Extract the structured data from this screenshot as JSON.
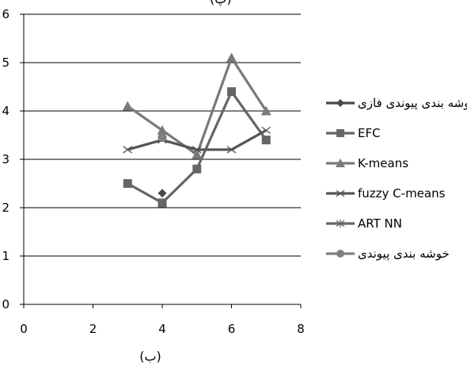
{
  "chart_data": {
    "type": "line",
    "title": "",
    "caption": "(ب)",
    "top_label_fragment": "(پ)",
    "xlabel": "",
    "ylabel": "",
    "xlim": [
      0,
      8
    ],
    "ylim": [
      0,
      6
    ],
    "x_ticks": [
      "0",
      "2",
      "4",
      "6",
      "8"
    ],
    "y_ticks": [
      "0",
      "1",
      "2",
      "3",
      "4",
      "5",
      "6"
    ],
    "grid": "horizontal",
    "legend_position": "right",
    "series": [
      {
        "name": "خوشه بندی پیوندی فازی",
        "marker": "diamond",
        "color": "#4a4a4a",
        "x": [
          4
        ],
        "y": [
          2.3
        ]
      },
      {
        "name": "EFC",
        "marker": "square",
        "color": "#666666",
        "x": [
          3,
          4,
          5,
          6,
          7
        ],
        "y": [
          2.5,
          2.1,
          2.8,
          4.4,
          3.4
        ]
      },
      {
        "name": "K-means",
        "marker": "triangle",
        "color": "#7a7a7a",
        "x": [
          3,
          4,
          5,
          6,
          7
        ],
        "y": [
          4.1,
          3.6,
          3.1,
          5.1,
          4.0
        ]
      },
      {
        "name": "fuzzy C-means",
        "marker": "x",
        "color": "#555555",
        "x": [
          3,
          4,
          5,
          6,
          7
        ],
        "y": [
          3.2,
          3.4,
          3.2,
          3.2,
          3.6
        ]
      },
      {
        "name": "ART NN",
        "marker": "star",
        "color": "#666666",
        "x": [],
        "y": []
      },
      {
        "name": "خوشه بندی پیوندی",
        "marker": "circle",
        "color": "#808080",
        "x": [
          4
        ],
        "y": [
          3.45
        ]
      }
    ]
  }
}
